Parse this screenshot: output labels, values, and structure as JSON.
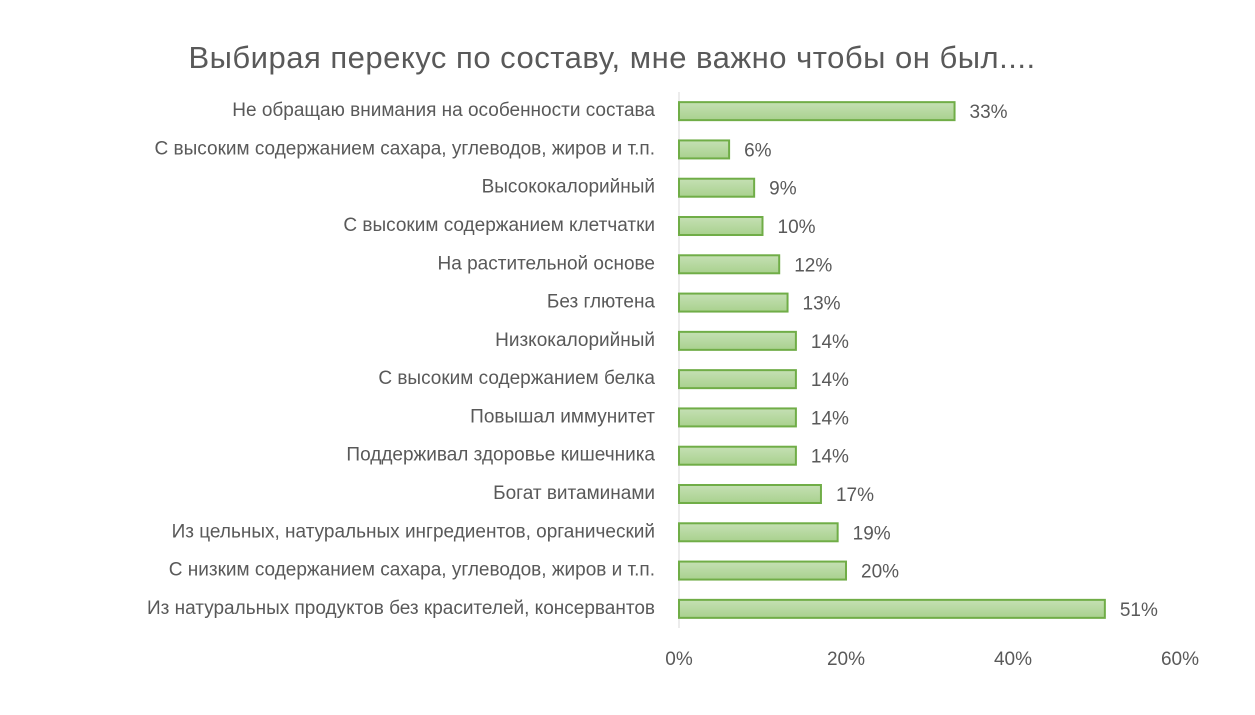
{
  "chart_data": {
    "type": "bar",
    "orientation": "horizontal",
    "title": "Выбирая перекус по составу, мне важно чтобы он был....",
    "categories": [
      "Не обращаю внимания на особенности состава",
      "С высоким содержанием сахара, углеводов, жиров и т.п.",
      "Высококалорийный",
      "С высоким содержанием клетчатки",
      "На растительной основе",
      "Без глютена",
      "Низкокалорийный",
      "С высоким содержанием белка",
      "Повышал иммунитет",
      "Поддерживал здоровье кишечника",
      "Богат витаминами",
      "Из цельных, натуральных ингредиентов, органический",
      "С низким содержанием сахара, углеводов, жиров и т.п.",
      "Из натуральных продуктов без красителей, консервантов"
    ],
    "values": [
      33,
      6,
      9,
      10,
      12,
      13,
      14,
      14,
      14,
      14,
      17,
      19,
      20,
      51
    ],
    "value_labels": [
      "33%",
      "6%",
      "9%",
      "10%",
      "12%",
      "13%",
      "14%",
      "14%",
      "14%",
      "14%",
      "17%",
      "19%",
      "20%",
      "51%"
    ],
    "color": "#a9d18e",
    "border_color": "#70ad47",
    "xlim": [
      0,
      60
    ],
    "xticks": [
      {
        "value": 0,
        "label": "0%"
      },
      {
        "value": 20,
        "label": "20%"
      },
      {
        "value": 40,
        "label": "40%"
      },
      {
        "value": 60,
        "label": "60%"
      }
    ],
    "grid": false
  }
}
